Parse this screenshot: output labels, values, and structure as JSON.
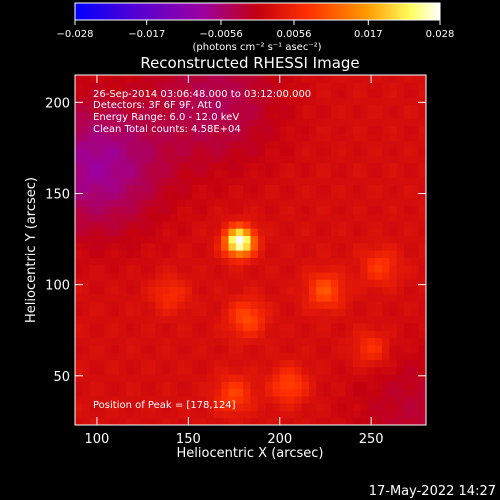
{
  "chart_data": {
    "type": "heatmap",
    "title": "Reconstructed RHESSI Image",
    "xlabel": "Heliocentric X (arcsec)",
    "ylabel": "Heliocentric Y (arcsec)",
    "xlim": [
      88,
      280
    ],
    "ylim": [
      23,
      215
    ],
    "x_ticks": [
      100,
      150,
      200,
      250
    ],
    "y_ticks": [
      50,
      100,
      150,
      200
    ],
    "colorbar": {
      "min": -0.028,
      "max": 0.028,
      "ticks": [
        "-0.028",
        "-0.017",
        "-0.0056",
        "0.0056",
        "0.017",
        "0.028"
      ],
      "units": "(photons cm⁻² s⁻¹ asec⁻²)",
      "colormap": [
        "#0000ff",
        "#7a00c8",
        "#a0007a",
        "#c80000",
        "#ff4000",
        "#ffa000",
        "#ffff80",
        "#ffffff"
      ]
    },
    "annotations": {
      "time": "26-Sep-2014 03:06:48.000 to 03:12:00.000",
      "detectors": "Detectors: 3F 6F 9F, Att 0",
      "energy": "Energy Range: 6.0 - 12.0 keV",
      "clean": "Clean    Total counts: 4.58E+04",
      "peak": "Position of Peak = [178,124]"
    },
    "peak": {
      "x": 178,
      "y": 124,
      "value": 0.028
    },
    "secondary_sources": [
      {
        "x": 225,
        "y": 97,
        "value": 0.0085
      },
      {
        "x": 182,
        "y": 82,
        "value": 0.008
      },
      {
        "x": 205,
        "y": 45,
        "value": 0.0075
      },
      {
        "x": 175,
        "y": 40,
        "value": 0.007
      },
      {
        "x": 255,
        "y": 110,
        "value": 0.006
      },
      {
        "x": 250,
        "y": 65,
        "value": 0.006
      },
      {
        "x": 140,
        "y": 95,
        "value": 0.005
      }
    ],
    "negative_regions": [
      {
        "x": 100,
        "y": 165,
        "value": -0.01
      },
      {
        "x": 165,
        "y": 200,
        "value": -0.006
      },
      {
        "x": 275,
        "y": 30,
        "value": -0.004
      }
    ]
  },
  "footer": {
    "timestamp": "17-May-2022 14:27"
  }
}
